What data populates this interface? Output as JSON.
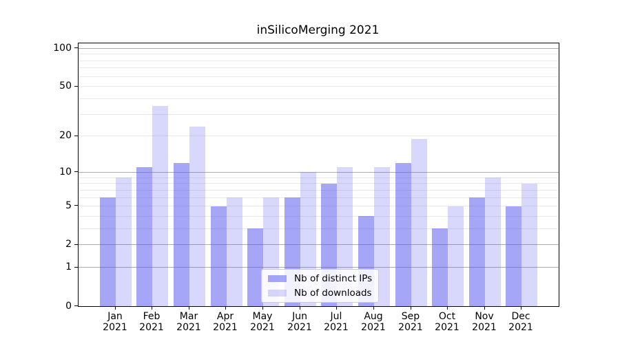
{
  "title": "inSilicoMerging 2021",
  "colors": {
    "bar_distinct_ips": "rgba(85,85,240,0.52)",
    "bar_downloads": "rgba(85,85,240,0.23)",
    "major_gridline": "#ababab",
    "minor_gridline": "#e9e9e9",
    "axis_spine": "#000000",
    "legend_border": "#cccccc"
  },
  "chart_data": {
    "type": "bar",
    "title": "inSilicoMerging 2021",
    "categories": [
      "Jan 2021",
      "Feb 2021",
      "Mar 2021",
      "Apr 2021",
      "May 2021",
      "Jun 2021",
      "Jul 2021",
      "Aug 2021",
      "Sep 2021",
      "Oct 2021",
      "Nov 2021",
      "Dec 2021"
    ],
    "series": [
      {
        "name": "Nb of distinct IPs",
        "values": [
          6,
          11,
          12,
          5,
          3,
          6,
          8,
          4,
          12,
          3,
          6,
          5
        ]
      },
      {
        "name": "Nb of downloads",
        "values": [
          9,
          35,
          24,
          6,
          6,
          10,
          11,
          11,
          19,
          5,
          9,
          8
        ]
      }
    ],
    "xlabel": "",
    "ylabel": "",
    "yscale": "log1p",
    "ylim": [
      0,
      111
    ],
    "ytick_labels": [
      "0",
      "1",
      "2",
      "5",
      "10",
      "20",
      "50",
      "100"
    ],
    "yticks": [
      0,
      1,
      2,
      5,
      10,
      20,
      50,
      100
    ],
    "major_gridlines": [
      1,
      2,
      10,
      100
    ],
    "minor_gridlines": [
      3,
      4,
      5,
      6,
      7,
      8,
      9,
      20,
      30,
      40,
      50,
      60,
      70,
      80,
      90
    ],
    "grid": true,
    "legend_position": "lower center"
  }
}
